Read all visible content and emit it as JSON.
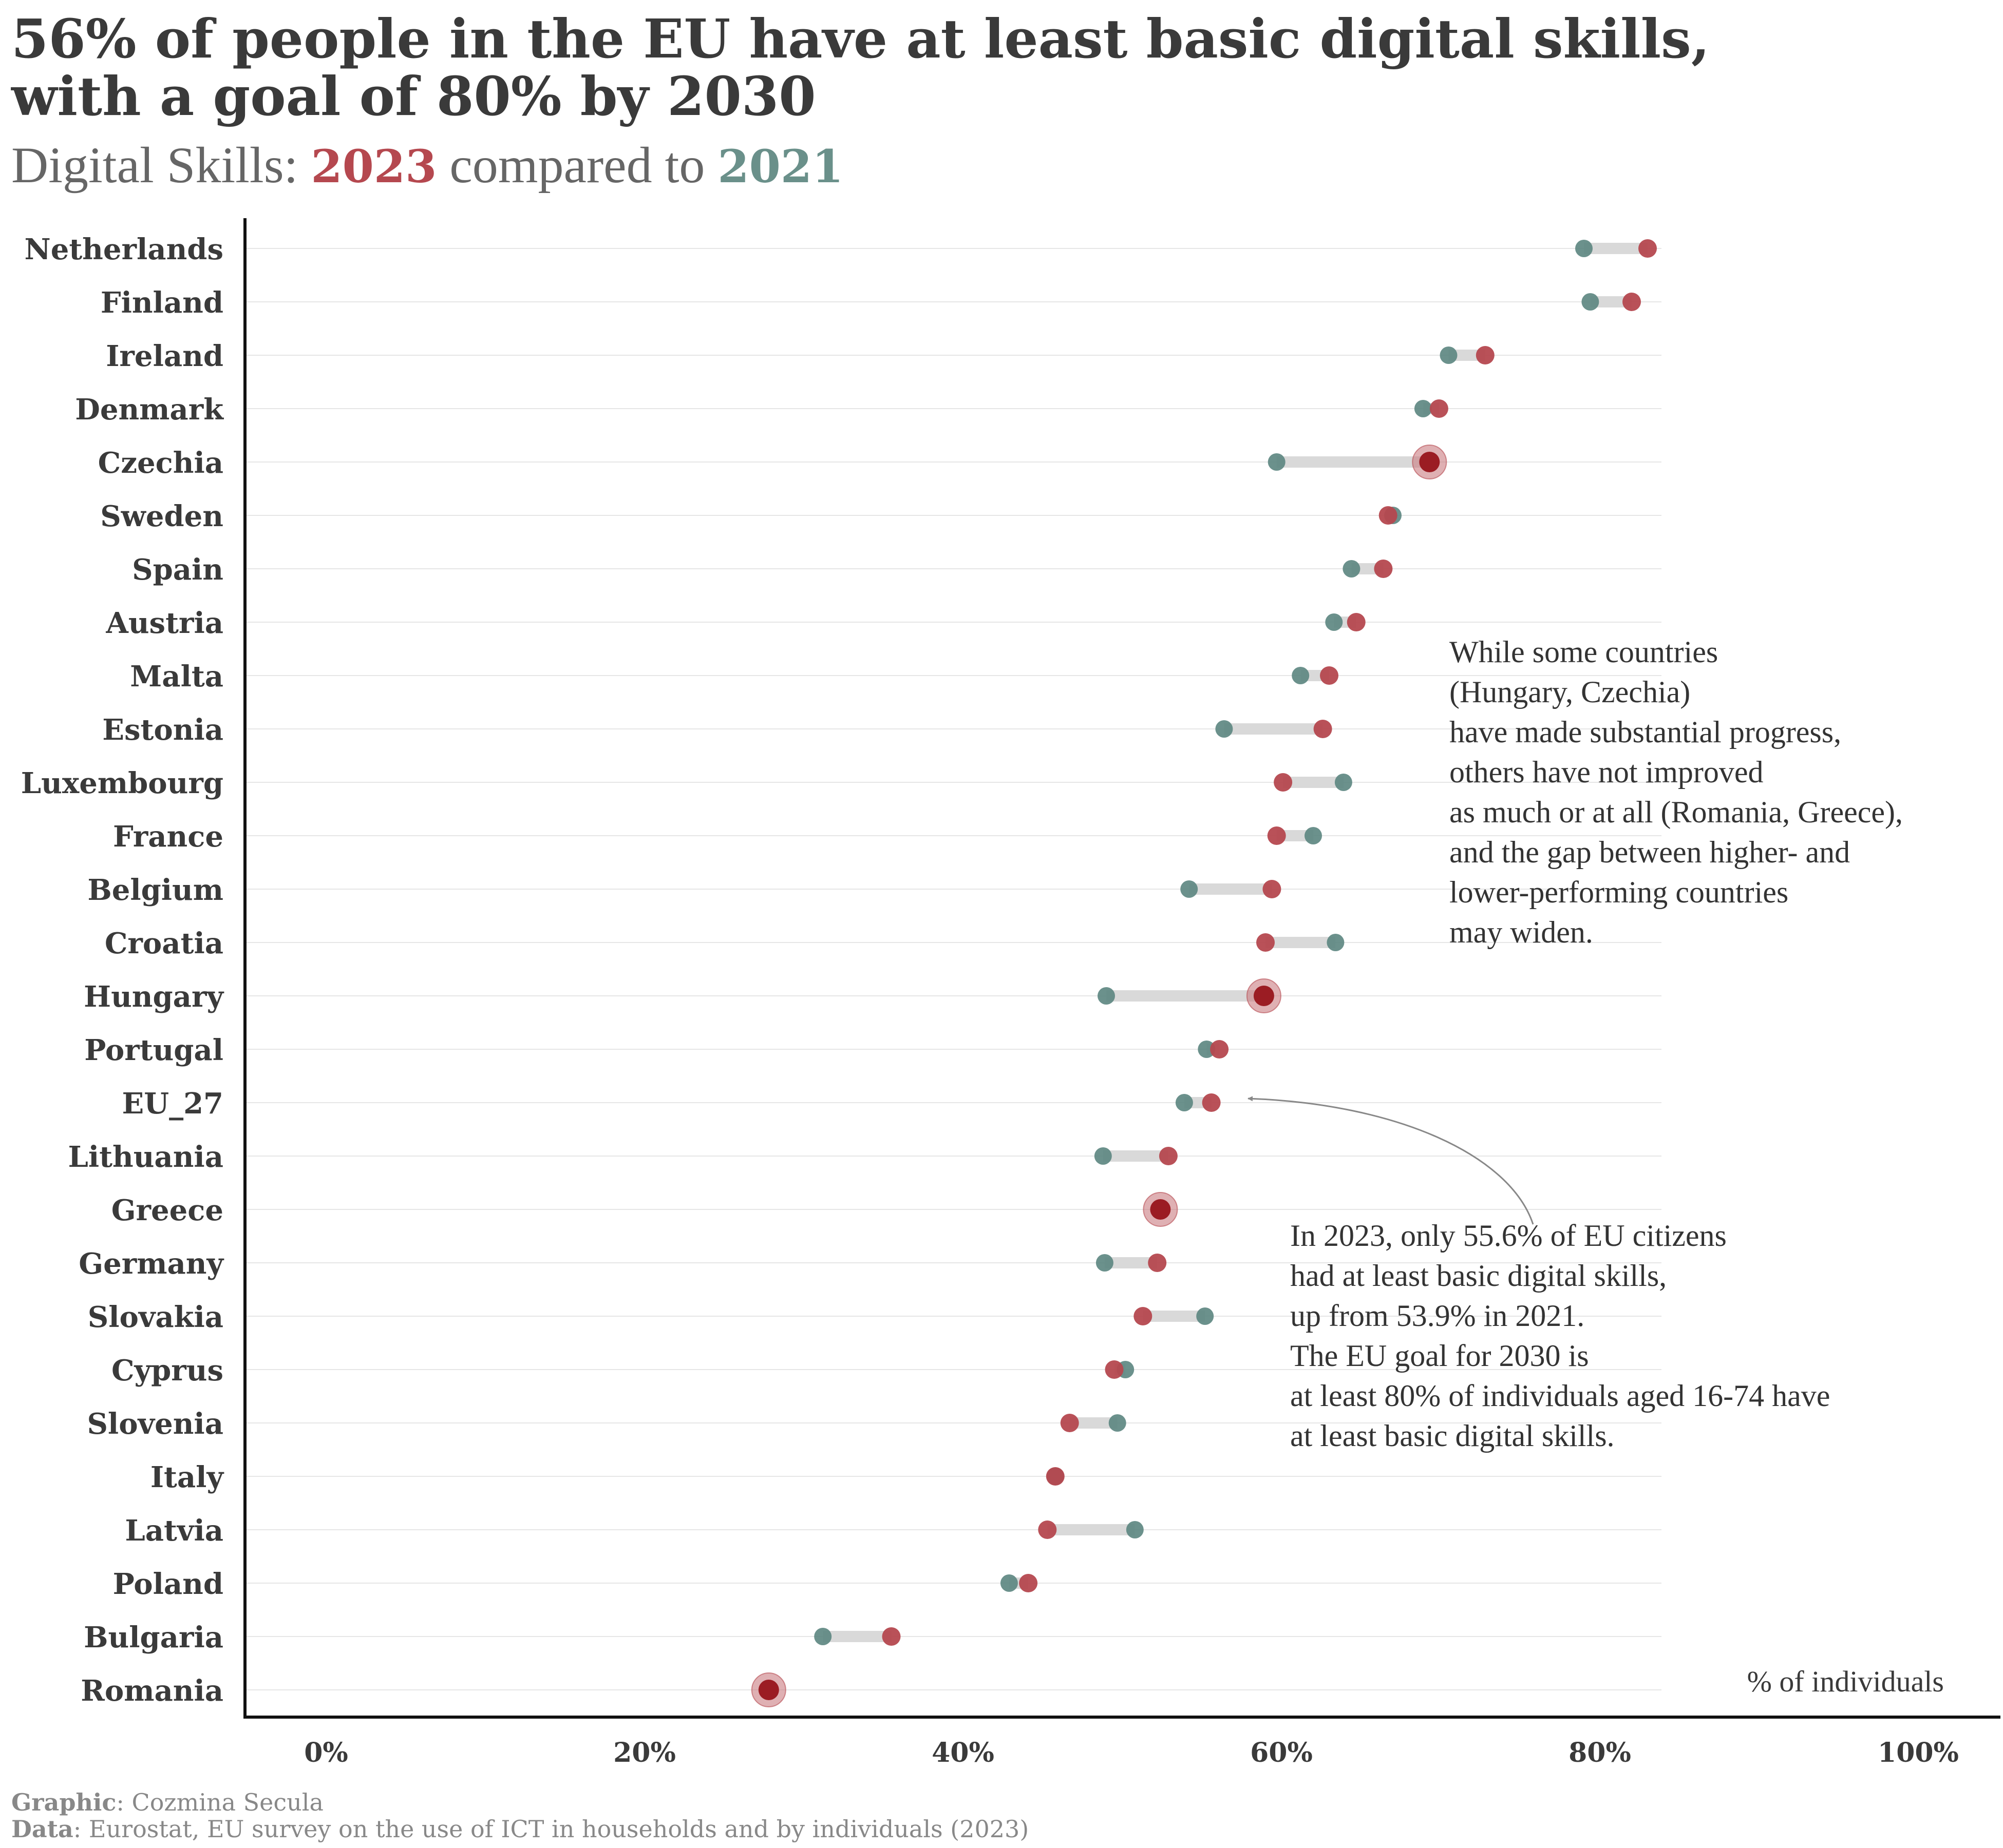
{
  "title": "56% of people in the EU have at least basic digital skills, with a goal of 80% by 2030",
  "subtitle": {
    "prefix": "Digital Skills: ",
    "year_a": "2023",
    "middle": " compared to ",
    "year_b": "2021"
  },
  "colors": {
    "y2023": "#b5484f",
    "y2021": "#5e8882",
    "highlight": "#c97b80",
    "connector": "#d9d9d9",
    "gridline": "#e6e6e6",
    "axis": "#111111",
    "label": "#3a3a3a"
  },
  "chart_data": {
    "type": "dumbbell",
    "xlim": [
      -0.05,
      1.05
    ],
    "x_ticks": [
      0,
      0.2,
      0.4,
      0.6,
      0.8,
      1.0
    ],
    "x_tick_labels": [
      "0%",
      "20%",
      "40%",
      "60%",
      "80%",
      "100%"
    ],
    "xlabel": "% of individuals",
    "rows": [
      {
        "country": "Netherlands",
        "v2021": 0.79,
        "v2023": 0.83,
        "highlight": false
      },
      {
        "country": "Finland",
        "v2021": 0.794,
        "v2023": 0.82,
        "highlight": false
      },
      {
        "country": "Ireland",
        "v2021": 0.705,
        "v2023": 0.728,
        "highlight": false
      },
      {
        "country": "Denmark",
        "v2021": 0.689,
        "v2023": 0.699,
        "highlight": false
      },
      {
        "country": "Czechia",
        "v2021": 0.597,
        "v2023": 0.693,
        "highlight": true
      },
      {
        "country": "Sweden",
        "v2021": 0.67,
        "v2023": 0.667,
        "highlight": false
      },
      {
        "country": "Spain",
        "v2021": 0.644,
        "v2023": 0.664,
        "highlight": false
      },
      {
        "country": "Austria",
        "v2021": 0.633,
        "v2023": 0.647,
        "highlight": false
      },
      {
        "country": "Malta",
        "v2021": 0.612,
        "v2023": 0.63,
        "highlight": false
      },
      {
        "country": "Estonia",
        "v2021": 0.564,
        "v2023": 0.626,
        "highlight": false
      },
      {
        "country": "Luxembourg",
        "v2021": 0.639,
        "v2023": 0.601,
        "highlight": false
      },
      {
        "country": "France",
        "v2021": 0.62,
        "v2023": 0.597,
        "highlight": false
      },
      {
        "country": "Belgium",
        "v2021": 0.542,
        "v2023": 0.594,
        "highlight": false
      },
      {
        "country": "Croatia",
        "v2021": 0.634,
        "v2023": 0.59,
        "highlight": false
      },
      {
        "country": "Hungary",
        "v2021": 0.49,
        "v2023": 0.589,
        "highlight": true
      },
      {
        "country": "Portugal",
        "v2021": 0.553,
        "v2023": 0.561,
        "highlight": false
      },
      {
        "country": "EU_27",
        "v2021": 0.539,
        "v2023": 0.556,
        "highlight": false
      },
      {
        "country": "Lithuania",
        "v2021": 0.488,
        "v2023": 0.529,
        "highlight": false
      },
      {
        "country": "Greece",
        "v2021": 0.524,
        "v2023": 0.524,
        "highlight": true
      },
      {
        "country": "Germany",
        "v2021": 0.489,
        "v2023": 0.522,
        "highlight": false
      },
      {
        "country": "Slovakia",
        "v2021": 0.552,
        "v2023": 0.513,
        "highlight": false
      },
      {
        "country": "Cyprus",
        "v2021": 0.502,
        "v2023": 0.495,
        "highlight": false
      },
      {
        "country": "Slovenia",
        "v2021": 0.497,
        "v2023": 0.467,
        "highlight": false
      },
      {
        "country": "Italy",
        "v2021": 0.458,
        "v2023": 0.458,
        "highlight": false
      },
      {
        "country": "Latvia",
        "v2021": 0.508,
        "v2023": 0.453,
        "highlight": false
      },
      {
        "country": "Poland",
        "v2021": 0.429,
        "v2023": 0.441,
        "highlight": false
      },
      {
        "country": "Bulgaria",
        "v2021": 0.312,
        "v2023": 0.355,
        "highlight": false
      },
      {
        "country": "Romania",
        "v2021": 0.278,
        "v2023": 0.278,
        "highlight": true
      }
    ],
    "annotations": [
      {
        "id": "progress-note",
        "lines": [
          "While some countries",
          "(Hungary, Czechia)",
          "have made substantial progress,",
          "others have not improved",
          "as much or at all (Romania, Greece),",
          "and the gap between higher- and",
          "lower-performing countries",
          "may widen."
        ]
      },
      {
        "id": "eu-note",
        "lines": [
          "In 2023, only 55.6% of EU citizens",
          "had at least basic digital skills,",
          "up from 53.9% in 2021.",
          "The EU goal for 2030 is",
          "at least 80% of individuals aged 16-74 have",
          "at least basic digital skills."
        ]
      }
    ]
  },
  "footer": {
    "graphic_label": "Graphic",
    "graphic_value": ": Cozmina Secula",
    "data_label": "Data",
    "data_value": ": Eurostat, EU survey on the use of ICT in households and by individuals (2023)"
  }
}
